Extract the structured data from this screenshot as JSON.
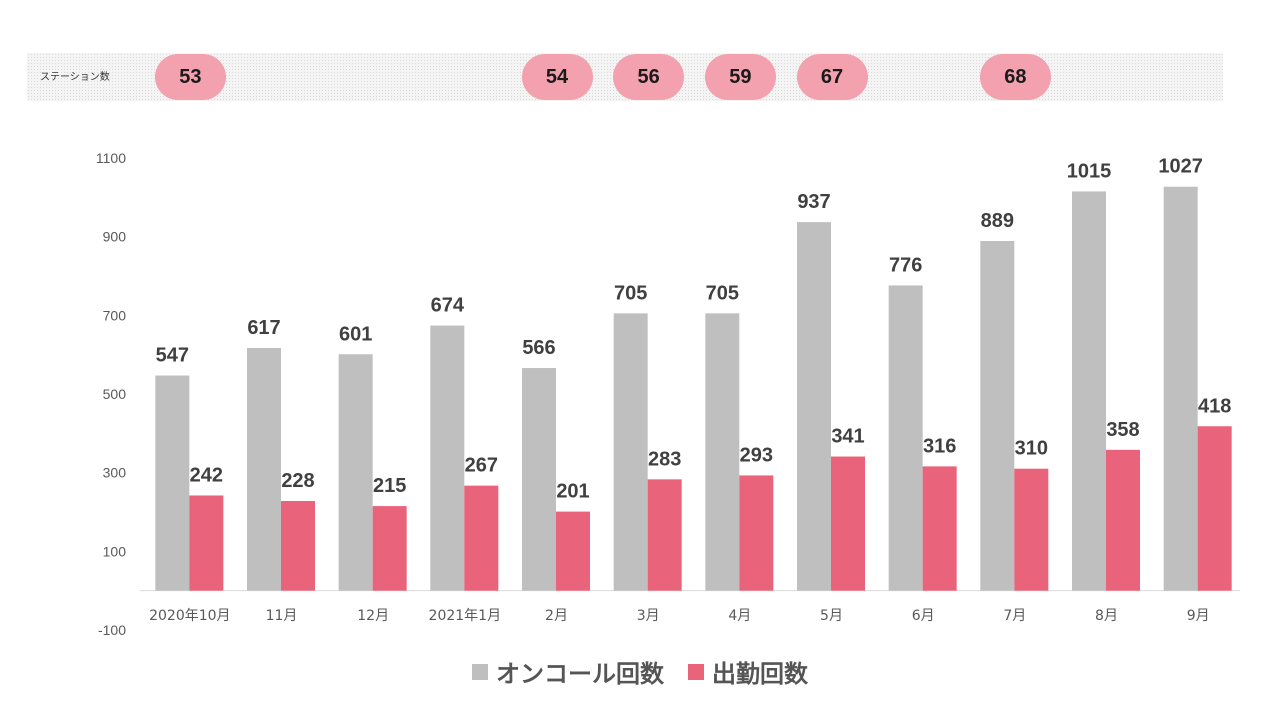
{
  "station_row": {
    "label": "ステーション数",
    "values": [
      "53",
      "54",
      "56",
      "59",
      "67",
      "68"
    ],
    "category_index": [
      0,
      4,
      5,
      6,
      7,
      9
    ]
  },
  "chart_data": {
    "type": "bar",
    "categories": [
      "2020年10月",
      "11月",
      "12月",
      "2021年1月",
      "2月",
      "3月",
      "4月",
      "5月",
      "6月",
      "7月",
      "8月",
      "9月"
    ],
    "series": [
      {
        "name": "オンコール回数",
        "color": "#bfbfbf",
        "values": [
          547,
          617,
          601,
          674,
          566,
          705,
          705,
          937,
          776,
          889,
          1015,
          1027
        ]
      },
      {
        "name": "出勤回数",
        "color": "#e9637a",
        "values": [
          242,
          228,
          215,
          267,
          201,
          283,
          293,
          341,
          316,
          310,
          358,
          418
        ]
      }
    ],
    "ylim": [
      -100,
      1100
    ],
    "yticks": [
      1100,
      900,
      700,
      500,
      300,
      100,
      -100
    ],
    "legend": "bottom"
  }
}
